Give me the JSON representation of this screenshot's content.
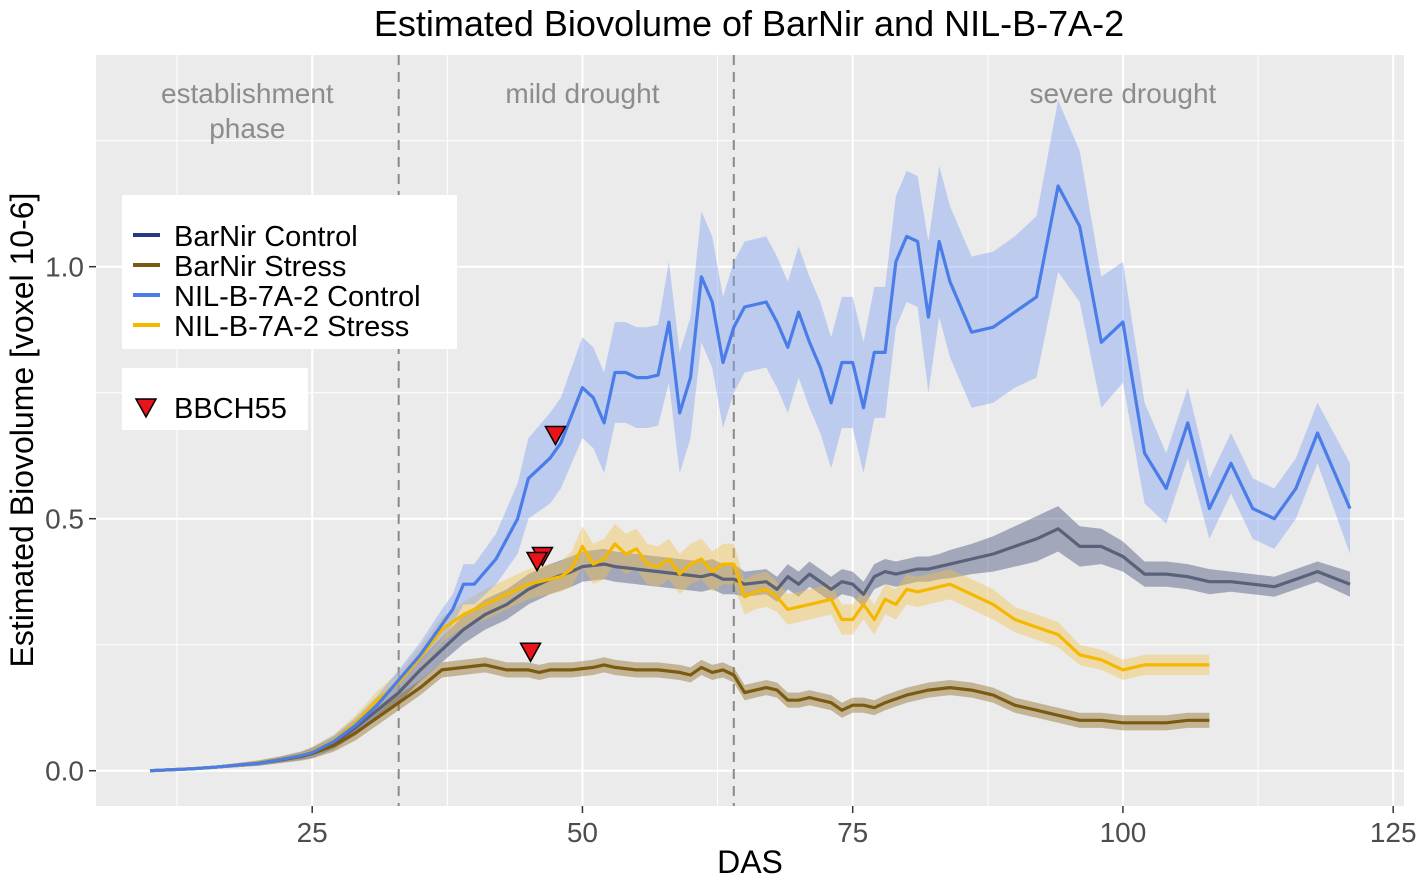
{
  "chart_data": {
    "type": "line",
    "title": "Estimated Biovolume of BarNir and NIL-B-7A-2",
    "xlabel": "DAS",
    "ylabel": "Estimated Biovolume [voxel 10-6]",
    "xlim": [
      5,
      126
    ],
    "ylim": [
      -0.07,
      1.42
    ],
    "xticks": [
      25,
      50,
      75,
      100,
      125
    ],
    "yticks": [
      0.0,
      0.5,
      1.0
    ],
    "xtick_labels": [
      "25",
      "50",
      "75",
      "100",
      "125"
    ],
    "ytick_labels": [
      "0.0",
      "0.5",
      "1.0"
    ],
    "grid": true,
    "phase_boundaries": [
      33,
      64
    ],
    "phases": [
      {
        "label_lines": [
          "establishment",
          "phase"
        ],
        "x": 19
      },
      {
        "label_lines": [
          "mild drought"
        ],
        "x": 50
      },
      {
        "label_lines": [
          "severe drought"
        ],
        "x": 100
      }
    ],
    "legend_title": "",
    "series": [
      {
        "name": "BarNir Control",
        "color": "#253b80",
        "band_color": "#404a78",
        "x": [
          10,
          12,
          14,
          16,
          18,
          20,
          22,
          24,
          25,
          27,
          29,
          31,
          33,
          35,
          37,
          39,
          41,
          43,
          45,
          47,
          49,
          50,
          52,
          53,
          55,
          57,
          59,
          61,
          62,
          63,
          64,
          65,
          67,
          68,
          69,
          70,
          71,
          72,
          73,
          74,
          75,
          76,
          77,
          78,
          79,
          80,
          81,
          82,
          83,
          84,
          86,
          88,
          90,
          92,
          94,
          96,
          98,
          100,
          102,
          104,
          106,
          108,
          110,
          112,
          114,
          116,
          118,
          121
        ],
        "values": [
          0.0,
          0.002,
          0.004,
          0.007,
          0.011,
          0.015,
          0.022,
          0.03,
          0.036,
          0.055,
          0.085,
          0.12,
          0.155,
          0.2,
          0.24,
          0.28,
          0.31,
          0.33,
          0.36,
          0.38,
          0.395,
          0.405,
          0.41,
          0.405,
          0.4,
          0.395,
          0.39,
          0.385,
          0.39,
          0.38,
          0.38,
          0.37,
          0.375,
          0.36,
          0.385,
          0.37,
          0.39,
          0.375,
          0.36,
          0.375,
          0.37,
          0.35,
          0.385,
          0.395,
          0.39,
          0.395,
          0.4,
          0.4,
          0.405,
          0.41,
          0.42,
          0.43,
          0.445,
          0.46,
          0.48,
          0.445,
          0.445,
          0.425,
          0.39,
          0.39,
          0.385,
          0.375,
          0.375,
          0.37,
          0.365,
          0.38,
          0.395,
          0.37
        ],
        "band": [
          0.0,
          0.001,
          0.002,
          0.003,
          0.004,
          0.005,
          0.006,
          0.008,
          0.01,
          0.012,
          0.015,
          0.018,
          0.02,
          0.022,
          0.025,
          0.028,
          0.03,
          0.03,
          0.03,
          0.03,
          0.03,
          0.03,
          0.03,
          0.03,
          0.03,
          0.03,
          0.03,
          0.03,
          0.03,
          0.03,
          0.03,
          0.025,
          0.025,
          0.025,
          0.025,
          0.025,
          0.025,
          0.025,
          0.025,
          0.025,
          0.025,
          0.025,
          0.025,
          0.025,
          0.025,
          0.025,
          0.025,
          0.025,
          0.025,
          0.028,
          0.03,
          0.035,
          0.04,
          0.045,
          0.045,
          0.04,
          0.035,
          0.03,
          0.025,
          0.025,
          0.025,
          0.025,
          0.02,
          0.02,
          0.02,
          0.02,
          0.02,
          0.025
        ]
      },
      {
        "name": "BarNir Stress",
        "color": "#7b5a10",
        "band_color": "#8a6a20",
        "x": [
          10,
          12,
          14,
          16,
          18,
          20,
          22,
          24,
          25,
          27,
          29,
          31,
          33,
          35,
          37,
          39,
          41,
          43,
          45,
          46,
          47,
          49,
          51,
          52,
          53,
          55,
          57,
          59,
          60,
          61,
          62,
          63,
          64,
          65,
          66,
          67,
          68,
          69,
          70,
          71,
          72,
          73,
          74,
          75,
          76,
          77,
          78,
          80,
          82,
          84,
          86,
          88,
          90,
          92,
          94,
          96,
          98,
          100,
          102,
          104,
          106,
          108
        ],
        "values": [
          0.0,
          0.002,
          0.004,
          0.007,
          0.011,
          0.015,
          0.021,
          0.028,
          0.034,
          0.05,
          0.075,
          0.105,
          0.135,
          0.165,
          0.2,
          0.205,
          0.21,
          0.2,
          0.2,
          0.195,
          0.2,
          0.2,
          0.205,
          0.21,
          0.205,
          0.2,
          0.2,
          0.195,
          0.19,
          0.205,
          0.195,
          0.2,
          0.19,
          0.155,
          0.16,
          0.165,
          0.16,
          0.14,
          0.14,
          0.145,
          0.14,
          0.135,
          0.12,
          0.13,
          0.13,
          0.125,
          0.135,
          0.15,
          0.16,
          0.165,
          0.16,
          0.15,
          0.13,
          0.12,
          0.11,
          0.1,
          0.1,
          0.095,
          0.095,
          0.095,
          0.1,
          0.1
        ],
        "band": [
          0.0,
          0.001,
          0.002,
          0.003,
          0.004,
          0.005,
          0.006,
          0.008,
          0.01,
          0.012,
          0.015,
          0.015,
          0.015,
          0.015,
          0.015,
          0.015,
          0.015,
          0.015,
          0.015,
          0.015,
          0.015,
          0.015,
          0.015,
          0.015,
          0.015,
          0.015,
          0.015,
          0.015,
          0.015,
          0.015,
          0.015,
          0.015,
          0.015,
          0.015,
          0.015,
          0.015,
          0.015,
          0.015,
          0.015,
          0.015,
          0.015,
          0.015,
          0.015,
          0.015,
          0.015,
          0.015,
          0.015,
          0.015,
          0.015,
          0.015,
          0.015,
          0.015,
          0.015,
          0.015,
          0.015,
          0.015,
          0.015,
          0.015,
          0.015,
          0.015,
          0.015,
          0.015
        ]
      },
      {
        "name": "NIL-B-7A-2 Control",
        "color": "#4a7de8",
        "band_color": "#7b9ff2",
        "x": [
          10,
          12,
          14,
          16,
          18,
          20,
          22,
          24,
          25,
          27,
          29,
          31,
          33,
          35,
          37,
          38,
          39,
          40,
          42,
          43,
          44,
          45,
          47,
          48,
          50,
          51,
          52,
          53,
          54,
          55,
          56,
          57,
          58,
          59,
          60,
          61,
          62,
          63,
          64,
          65,
          67,
          68,
          69,
          70,
          71,
          72,
          73,
          74,
          75,
          76,
          77,
          78,
          79,
          80,
          81,
          82,
          83,
          84,
          86,
          88,
          90,
          92,
          94,
          96,
          98,
          100,
          102,
          104,
          106,
          108,
          110,
          112,
          114,
          116,
          118,
          121
        ],
        "values": [
          0.0,
          0.002,
          0.004,
          0.007,
          0.011,
          0.015,
          0.022,
          0.03,
          0.036,
          0.058,
          0.09,
          0.13,
          0.18,
          0.23,
          0.29,
          0.32,
          0.37,
          0.37,
          0.42,
          0.46,
          0.5,
          0.58,
          0.62,
          0.65,
          0.76,
          0.74,
          0.69,
          0.79,
          0.79,
          0.78,
          0.78,
          0.785,
          0.89,
          0.71,
          0.78,
          0.98,
          0.93,
          0.81,
          0.88,
          0.92,
          0.93,
          0.89,
          0.84,
          0.91,
          0.85,
          0.8,
          0.73,
          0.81,
          0.81,
          0.72,
          0.83,
          0.83,
          1.01,
          1.06,
          1.05,
          0.9,
          1.05,
          0.97,
          0.87,
          0.88,
          0.91,
          0.94,
          1.16,
          1.08,
          0.85,
          0.89,
          0.63,
          0.56,
          0.69,
          0.52,
          0.61,
          0.52,
          0.5,
          0.56,
          0.67,
          0.52
        ],
        "band": [
          0.0,
          0.001,
          0.002,
          0.003,
          0.004,
          0.005,
          0.006,
          0.008,
          0.01,
          0.012,
          0.015,
          0.018,
          0.02,
          0.025,
          0.03,
          0.03,
          0.04,
          0.04,
          0.05,
          0.06,
          0.07,
          0.08,
          0.09,
          0.09,
          0.1,
          0.1,
          0.1,
          0.1,
          0.1,
          0.1,
          0.1,
          0.1,
          0.12,
          0.12,
          0.12,
          0.13,
          0.13,
          0.13,
          0.13,
          0.13,
          0.13,
          0.13,
          0.13,
          0.13,
          0.13,
          0.13,
          0.13,
          0.13,
          0.13,
          0.13,
          0.13,
          0.13,
          0.13,
          0.13,
          0.13,
          0.15,
          0.15,
          0.15,
          0.15,
          0.15,
          0.15,
          0.16,
          0.17,
          0.15,
          0.13,
          0.12,
          0.1,
          0.07,
          0.07,
          0.06,
          0.06,
          0.06,
          0.06,
          0.06,
          0.06,
          0.09
        ]
      },
      {
        "name": "NIL-B-7A-2 Stress",
        "color": "#f5b800",
        "band_color": "#f2c24c",
        "x": [
          10,
          12,
          14,
          16,
          18,
          20,
          22,
          24,
          25,
          27,
          29,
          31,
          33,
          35,
          37,
          39,
          41,
          43,
          45,
          47,
          48,
          49,
          50,
          51,
          52,
          53,
          54,
          55,
          56,
          57,
          58,
          59,
          60,
          61,
          62,
          63,
          64,
          65,
          66,
          67,
          68,
          69,
          70,
          72,
          73,
          74,
          75,
          76,
          77,
          78,
          79,
          80,
          81,
          82,
          84,
          86,
          88,
          90,
          92,
          94,
          96,
          98,
          100,
          102,
          104,
          106,
          108
        ],
        "values": [
          0.0,
          0.002,
          0.004,
          0.007,
          0.011,
          0.016,
          0.023,
          0.031,
          0.038,
          0.06,
          0.095,
          0.14,
          0.175,
          0.225,
          0.28,
          0.31,
          0.33,
          0.35,
          0.37,
          0.38,
          0.385,
          0.4,
          0.445,
          0.41,
          0.42,
          0.45,
          0.43,
          0.44,
          0.41,
          0.405,
          0.42,
          0.39,
          0.41,
          0.42,
          0.395,
          0.41,
          0.41,
          0.345,
          0.355,
          0.36,
          0.345,
          0.32,
          0.325,
          0.335,
          0.34,
          0.3,
          0.3,
          0.33,
          0.3,
          0.34,
          0.33,
          0.36,
          0.355,
          0.36,
          0.37,
          0.35,
          0.33,
          0.3,
          0.285,
          0.27,
          0.23,
          0.22,
          0.2,
          0.21,
          0.21,
          0.21,
          0.21
        ],
        "band": [
          0.0,
          0.001,
          0.002,
          0.003,
          0.004,
          0.005,
          0.006,
          0.008,
          0.01,
          0.012,
          0.015,
          0.018,
          0.02,
          0.022,
          0.025,
          0.025,
          0.03,
          0.03,
          0.03,
          0.03,
          0.03,
          0.035,
          0.04,
          0.04,
          0.04,
          0.04,
          0.04,
          0.04,
          0.04,
          0.04,
          0.04,
          0.04,
          0.04,
          0.04,
          0.04,
          0.04,
          0.04,
          0.035,
          0.035,
          0.035,
          0.03,
          0.03,
          0.03,
          0.03,
          0.03,
          0.03,
          0.03,
          0.03,
          0.03,
          0.03,
          0.03,
          0.03,
          0.03,
          0.03,
          0.03,
          0.03,
          0.03,
          0.025,
          0.025,
          0.025,
          0.02,
          0.02,
          0.02,
          0.02,
          0.02,
          0.02,
          0.02
        ]
      }
    ],
    "markers": {
      "label": "BBCH55",
      "color": "#e8141a",
      "points": [
        {
          "x": 47.5,
          "y": 0.665
        },
        {
          "x": 46.3,
          "y": 0.425
        },
        {
          "x": 45.8,
          "y": 0.415
        },
        {
          "x": 45.2,
          "y": 0.235
        }
      ]
    }
  }
}
